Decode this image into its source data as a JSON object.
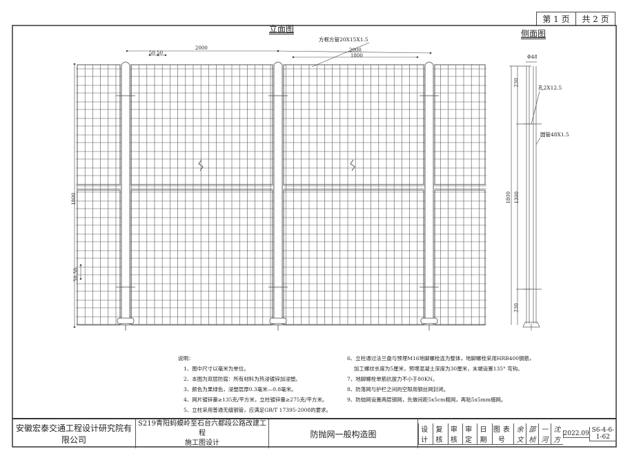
{
  "page": {
    "current": "第 1 页",
    "total": "共 2 页"
  },
  "elevation": {
    "title": "立面图",
    "frame_label": "方框方管20X15X1.5",
    "dim_left": "2000",
    "dim_mesh": "50  50",
    "dim_right_outer": "2000",
    "dim_right_inner": "1800",
    "dim_height": "1800",
    "dim_mesh_vertical": "50 50"
  },
  "side_view": {
    "title": "侧面图",
    "dia_label": "Φ48",
    "hole_label": "孔2X12.5",
    "pipe_label": "圆管48X1.5",
    "dim_top": "230",
    "dim_total": "1800",
    "dim_mid": "1300",
    "dim_bottom": "230"
  },
  "notes": {
    "heading": "说明：",
    "left": [
      "1、图中尺寸以毫米为单位。",
      "2、本图为双层防腐：所有材料为热浸镀锌加浸塑。",
      "3、颜色为果绿色，浸塑层厚0.3毫米—0.8毫米。",
      "4、网片镀锌量≥135克/平方米，立柱镀锌量≥275克/平方米。",
      "5、立柱采用普通无缝钢管，应满足GB/T 17395-2008的要求。"
    ],
    "right": [
      "6、立柱通过法兰盘与预埋M16地脚螺栓连为整体，地脚螺栓采用HRB400钢筋，",
      "　 加工螺纹长度为5厘米，预埋混凝土深度为30厘米，末端设置135° 弯钩。",
      "7、地脚螺栓单筋抗拔力不小于80KN。",
      "8、防落网与护栏之间的空隙用钢丝网封闭。",
      "9、防抛网设置两层钢网，先做间距5x5cm粗网，再贴5x5mm细网。"
    ]
  },
  "title_block": {
    "company": "安徽宏泰交通工程设计研究院有限公司",
    "project_line1": "S219青阳蚂蟆岭至石台六都段公路改建工程",
    "project_line2": "施工图设计",
    "drawing_title": "防抛网一般构造图",
    "headers": [
      "设计",
      "复核",
      "审核",
      "审定",
      "日期",
      "图表号"
    ],
    "signatures": [
      "余 文",
      "邵 桢",
      "一 河",
      "沈 方"
    ],
    "date": "2022.09",
    "drawing_no": "S6-4-6-1-62"
  }
}
